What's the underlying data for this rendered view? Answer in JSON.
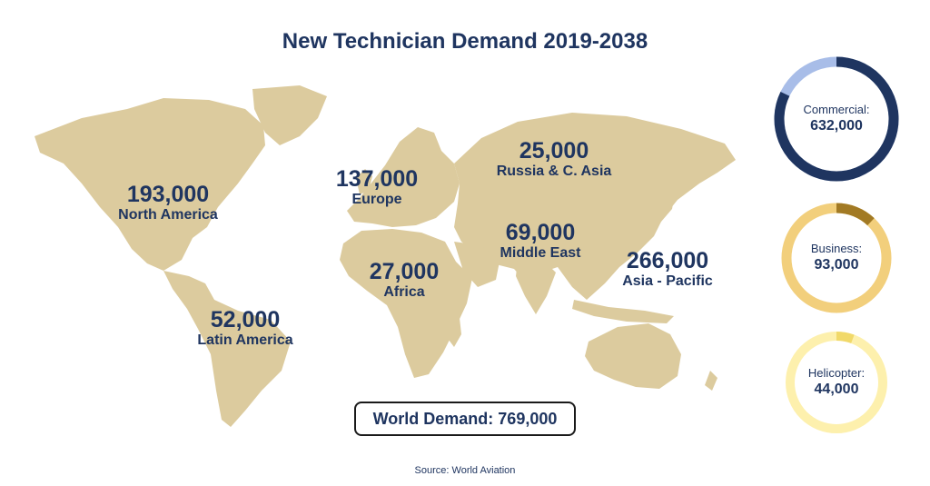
{
  "title": "New Technician Demand 2019-2038",
  "source": "Source: World Aviation",
  "world_total": "World Demand: 769,000",
  "colors": {
    "land": "#dccb9e",
    "text": "#1f3560",
    "commercial_ring": "#a8bde8",
    "commercial_fill": "#1f3560",
    "business_ring": "#f2cf7c",
    "business_fill": "#a27a24",
    "helicopter_ring": "#fdf0ad",
    "helicopter_fill": "#f1d96a"
  },
  "regions": [
    {
      "id": "north-america",
      "value": "193,000",
      "name": "North America"
    },
    {
      "id": "latin-america",
      "value": "52,000",
      "name": "Latin America"
    },
    {
      "id": "europe",
      "value": "137,000",
      "name": "Europe"
    },
    {
      "id": "africa",
      "value": "27,000",
      "name": "Africa"
    },
    {
      "id": "russia",
      "value": "25,000",
      "name": "Russia & C. Asia"
    },
    {
      "id": "middle-east",
      "value": "69,000",
      "name": "Middle East"
    },
    {
      "id": "asia-pacific",
      "value": "266,000",
      "name": "Asia - Pacific"
    }
  ],
  "segments": [
    {
      "id": "commercial",
      "label": "Commercial:",
      "value": "632,000",
      "fraction": 0.822
    },
    {
      "id": "business",
      "label": "Business:",
      "value": "93,000",
      "fraction": 0.121
    },
    {
      "id": "helicopter",
      "label": "Helicopter:",
      "value": "44,000",
      "fraction": 0.057
    }
  ]
}
